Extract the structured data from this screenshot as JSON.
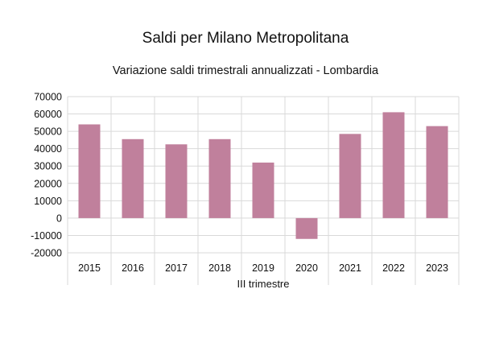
{
  "chart_data": {
    "type": "bar",
    "title": "Saldi per Milano Metropolitana",
    "subtitle": "Variazione saldi trimestrali annualizzati - Lombardia",
    "xlabel": "III trimestre",
    "ylabel": "",
    "categories": [
      "2015",
      "2016",
      "2017",
      "2018",
      "2019",
      "2020",
      "2021",
      "2022",
      "2023"
    ],
    "values": [
      54000,
      45500,
      42500,
      45500,
      32000,
      -12000,
      48500,
      61000,
      53000
    ],
    "ylim": [
      -20000,
      70000
    ],
    "yticks": [
      -20000,
      -10000,
      0,
      10000,
      20000,
      30000,
      40000,
      50000,
      60000,
      70000
    ],
    "ytick_labels": [
      "-20000",
      "-10000",
      "0",
      "10000",
      "20000",
      "30000",
      "40000",
      "50000",
      "60000",
      "70000"
    ],
    "grid": true,
    "bar_color": "#c0809c",
    "grid_color": "#d9d9d9"
  }
}
